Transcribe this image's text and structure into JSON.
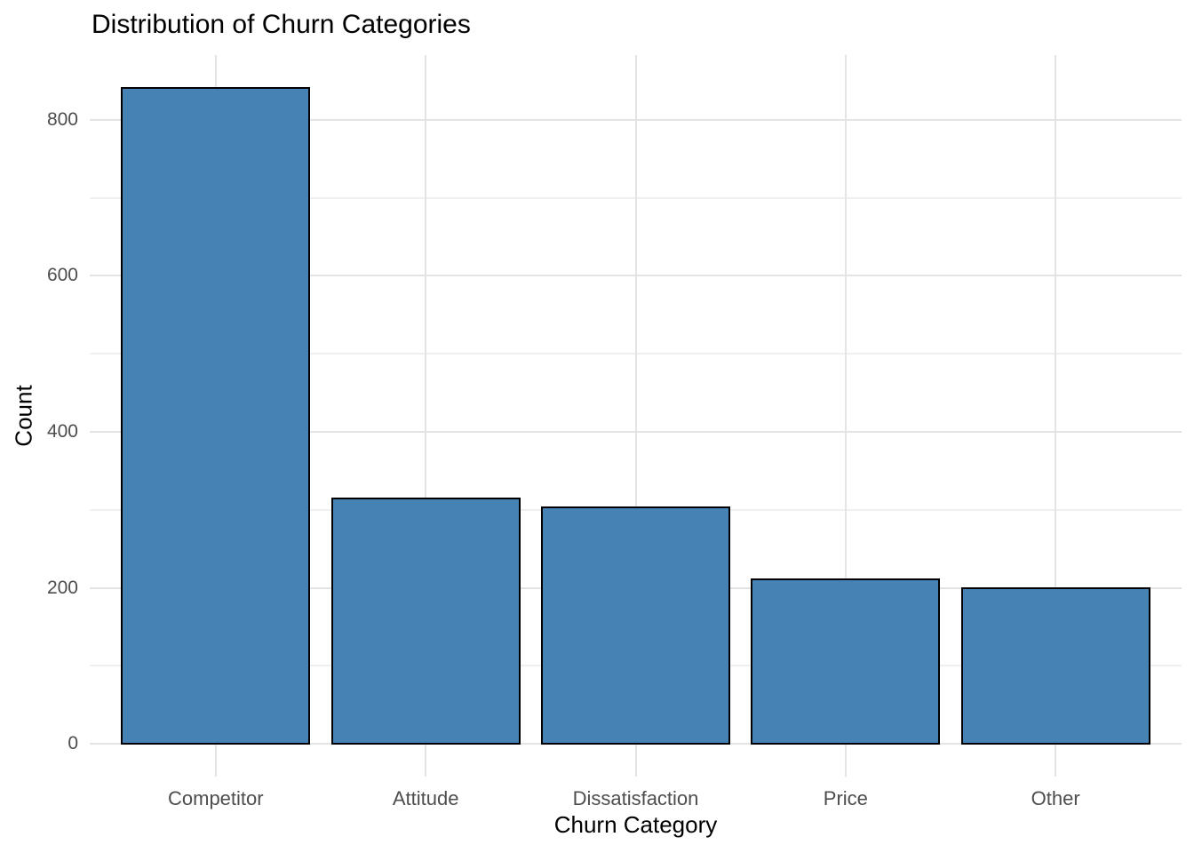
{
  "chart_data": {
    "type": "bar",
    "title": "Distribution of Churn Categories",
    "xlabel": "Churn Category",
    "ylabel": "Count",
    "categories": [
      "Competitor",
      "Attitude",
      "Dissatisfaction",
      "Price",
      "Other"
    ],
    "values": [
      841,
      314,
      303,
      211,
      200
    ],
    "ylim": [
      -42,
      883
    ],
    "yticks_major": [
      0,
      200,
      400,
      600,
      800
    ],
    "yticks_minor": [
      100,
      300,
      500,
      700
    ],
    "grid": "on",
    "legend": "none",
    "bar_width_fraction": 0.9,
    "colors": {
      "bar_fill": "#4682B4",
      "bar_stroke": "#000000",
      "grid_major": "#E4E4E4",
      "grid_minor": "#F0F0F0",
      "tick_label": "#4D4D4D",
      "axis_title": "#000000",
      "background": "#FFFFFF"
    }
  }
}
